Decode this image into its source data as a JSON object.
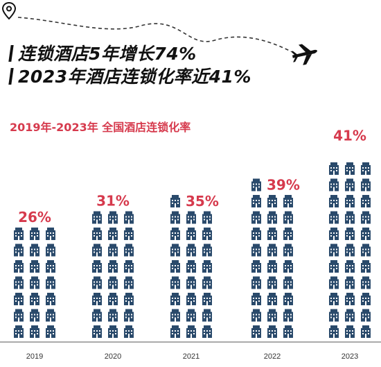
{
  "headline": {
    "line1": "连锁酒店5年增长74%",
    "line2": "2023年酒店连锁化率近41%"
  },
  "colors": {
    "accent": "#d63a4d",
    "building": "#2a4a6b",
    "text": "#111111"
  },
  "icons": {
    "pin": "location-pin-icon",
    "plane": "airplane-icon",
    "unit": "hotel-building-icon"
  },
  "chart_data": {
    "type": "bar",
    "title": "2019年-2023年 全国酒店连锁化率",
    "categories": [
      "2019",
      "2020",
      "2021",
      "2022",
      "2023"
    ],
    "values": [
      26,
      31,
      35,
      39,
      41
    ],
    "value_labels": [
      "26%",
      "31%",
      "35%",
      "39%",
      "41%"
    ],
    "unit": "%",
    "grid": false,
    "legend": "none",
    "ylim": [
      0,
      41
    ]
  }
}
